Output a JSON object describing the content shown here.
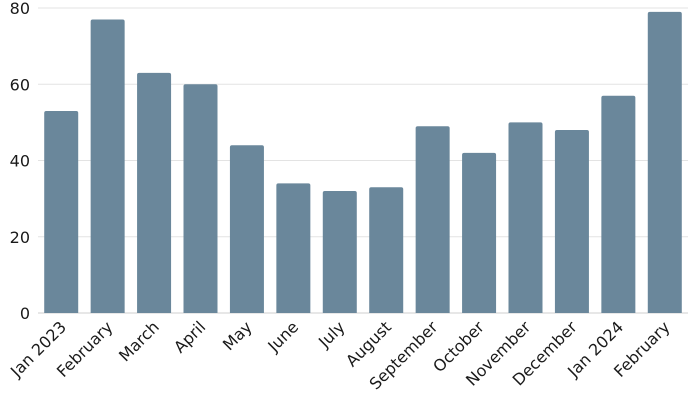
{
  "chart_data": {
    "type": "bar",
    "title": "",
    "xlabel": "",
    "ylabel": "",
    "categories": [
      "Jan 2023",
      "February",
      "March",
      "April",
      "May",
      "June",
      "July",
      "August",
      "September",
      "October",
      "November",
      "December",
      "Jan 2024",
      "February"
    ],
    "values": [
      53,
      77,
      63,
      60,
      44,
      34,
      32,
      33,
      49,
      42,
      50,
      48,
      57,
      79
    ],
    "ylim": [
      0,
      80
    ],
    "yticks": [
      0,
      20,
      40,
      60,
      80
    ],
    "ytick_labels": [
      "0",
      "20",
      "40",
      "60",
      "80"
    ],
    "grid": true,
    "bar_color": "#6a879b",
    "grid_color": "#e3e3e3"
  }
}
